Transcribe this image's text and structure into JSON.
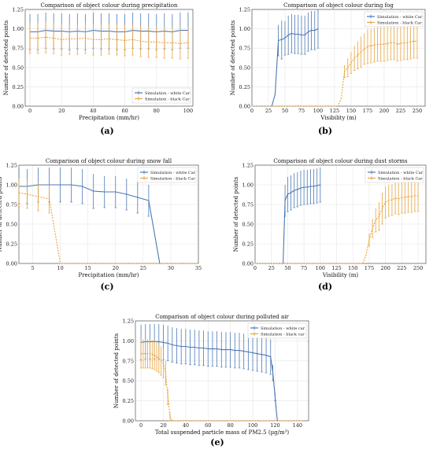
{
  "captions": [
    "(a)",
    "(b)",
    "(c)",
    "(d)",
    "(e)"
  ],
  "colors": {
    "white_car": "#4c78b5",
    "black_car": "#e8a33d",
    "axis": "#555555",
    "grid": "#e6e6e6"
  },
  "chart_data": [
    {
      "type": "line",
      "title": "Comparison of object colour during precipitation",
      "xlabel": "Precipitation (mm/hr)",
      "ylabel": "Number of detected points",
      "xlim": [
        -3,
        103
      ],
      "ylim": [
        0,
        1.25
      ],
      "xticks": [
        0,
        20,
        40,
        60,
        80,
        100
      ],
      "xtick_labels": [
        "0",
        "20",
        "40",
        "60",
        "80",
        "100"
      ],
      "yticks": [
        0,
        0.25,
        0.5,
        0.75,
        1.0,
        1.25
      ],
      "ytick_labels": [
        "0.00",
        "0.25",
        "0.50",
        "0.75",
        "1.00",
        "1.25"
      ],
      "legend_position": "bottom-right",
      "grid": true,
      "series": [
        {
          "name": "Simulation - white Car",
          "color": "#4c78b5",
          "x": [
            0,
            5,
            10,
            15,
            20,
            25,
            30,
            35,
            40,
            45,
            50,
            55,
            60,
            65,
            70,
            75,
            80,
            85,
            90,
            95,
            100
          ],
          "y": [
            0.96,
            0.96,
            0.98,
            0.97,
            0.97,
            0.96,
            0.97,
            0.96,
            0.98,
            0.97,
            0.97,
            0.96,
            0.96,
            0.98,
            0.97,
            0.97,
            0.96,
            0.97,
            0.96,
            0.98,
            0.98
          ],
          "err": [
            0.23,
            0.23,
            0.23,
            0.23,
            0.23,
            0.23,
            0.23,
            0.23,
            0.23,
            0.23,
            0.23,
            0.23,
            0.23,
            0.23,
            0.23,
            0.23,
            0.23,
            0.23,
            0.23,
            0.23,
            0.23
          ]
        },
        {
          "name": "Simulation - black Car",
          "color": "#e8a33d",
          "x": [
            0,
            5,
            10,
            15,
            20,
            25,
            30,
            35,
            40,
            45,
            50,
            55,
            60,
            65,
            70,
            75,
            80,
            85,
            90,
            95,
            100
          ],
          "y": [
            0.88,
            0.88,
            0.89,
            0.88,
            0.86,
            0.87,
            0.87,
            0.88,
            0.86,
            0.86,
            0.87,
            0.86,
            0.85,
            0.86,
            0.84,
            0.83,
            0.83,
            0.82,
            0.82,
            0.81,
            0.82
          ],
          "err": [
            0.2,
            0.2,
            0.2,
            0.2,
            0.2,
            0.2,
            0.2,
            0.2,
            0.2,
            0.2,
            0.2,
            0.2,
            0.2,
            0.2,
            0.2,
            0.2,
            0.2,
            0.2,
            0.2,
            0.2,
            0.2
          ]
        }
      ]
    },
    {
      "type": "line",
      "title": "Comparison of object colour during fog",
      "xlabel": "Visibility (m)",
      "ylabel": "Number of detected points",
      "xlim": [
        0,
        262
      ],
      "ylim": [
        0,
        1.25
      ],
      "xticks": [
        0,
        25,
        50,
        75,
        100,
        125,
        150,
        175,
        200,
        225,
        250
      ],
      "xtick_labels": [
        "0",
        "25",
        "50",
        "75",
        "100",
        "125",
        "150",
        "175",
        "200",
        "225",
        "250"
      ],
      "yticks": [
        0,
        0.25,
        0.5,
        0.75,
        1.0,
        1.25
      ],
      "ytick_labels": [
        "0.00",
        "0.25",
        "0.50",
        "0.75",
        "1.00",
        "1.25"
      ],
      "legend_position": "top-right",
      "grid": true,
      "series": [
        {
          "name": "Simulation - white Car",
          "color": "#4c78b5",
          "x": [
            0,
            30,
            35,
            40,
            45,
            50,
            55,
            60,
            65,
            70,
            75,
            80,
            85,
            90,
            95,
            100
          ],
          "y": [
            0,
            0,
            0.15,
            0.85,
            0.86,
            0.88,
            0.92,
            0.94,
            0.93,
            0.93,
            0.92,
            0.92,
            0.96,
            0.98,
            0.98,
            1.0
          ],
          "err": [
            0,
            0,
            0,
            0.2,
            0.25,
            0.22,
            0.25,
            0.25,
            0.25,
            0.25,
            0.25,
            0.25,
            0.25,
            0.25,
            0.25,
            0.25
          ]
        },
        {
          "name": "Simulation - black Car",
          "color": "#e8a33d",
          "x": [
            0,
            130,
            135,
            140,
            145,
            150,
            155,
            160,
            165,
            170,
            175,
            180,
            185,
            190,
            195,
            200,
            205,
            210,
            215,
            220,
            225,
            230,
            235,
            240,
            245,
            250
          ],
          "y": [
            0,
            0,
            0.1,
            0.45,
            0.5,
            0.56,
            0.62,
            0.66,
            0.7,
            0.74,
            0.77,
            0.78,
            0.79,
            0.8,
            0.8,
            0.8,
            0.81,
            0.82,
            0.82,
            0.8,
            0.81,
            0.82,
            0.82,
            0.83,
            0.84,
            0.84
          ],
          "err": [
            0,
            0,
            0,
            0.08,
            0.12,
            0.14,
            0.16,
            0.18,
            0.2,
            0.2,
            0.22,
            0.22,
            0.22,
            0.22,
            0.22,
            0.22,
            0.22,
            0.22,
            0.22,
            0.22,
            0.22,
            0.22,
            0.22,
            0.22,
            0.22,
            0.22
          ]
        }
      ]
    },
    {
      "type": "line",
      "title": "Comparison of object colour during snow fall",
      "xlabel": "Precipitation (mm/hr)",
      "ylabel": "Number of detected points",
      "xlim": [
        2.5,
        35
      ],
      "ylim": [
        0,
        1.25
      ],
      "xticks": [
        5,
        10,
        15,
        20,
        25,
        30,
        35
      ],
      "xtick_labels": [
        "5",
        "10",
        "15",
        "20",
        "25",
        "30",
        "35"
      ],
      "yticks": [
        0,
        0.25,
        0.5,
        0.75,
        1.0,
        1.25
      ],
      "ytick_labels": [
        "0.00",
        "0.25",
        "0.50",
        "0.75",
        "1.00",
        "1.25"
      ],
      "legend_position": "top-right",
      "grid": true,
      "series": [
        {
          "name": "Simulation - white Car",
          "color": "#4c78b5",
          "x": [
            2.5,
            4,
            6,
            8,
            10,
            12,
            14,
            16,
            18,
            20,
            22,
            24,
            26,
            28
          ],
          "y": [
            0.98,
            0.98,
            1.0,
            1.0,
            1.0,
            1.0,
            0.98,
            0.92,
            0.91,
            0.91,
            0.88,
            0.84,
            0.8,
            0.0
          ],
          "err": [
            0.22,
            0.22,
            0.22,
            0.22,
            0.22,
            0.22,
            0.22,
            0.22,
            0.2,
            0.2,
            0.2,
            0.2,
            0.2,
            0
          ]
        },
        {
          "name": "Simulation - black Car",
          "color": "#e8a33d",
          "x": [
            2.5,
            4,
            6,
            8,
            10,
            12,
            14,
            16,
            18,
            20,
            22,
            24,
            26,
            28,
            30,
            32,
            34,
            35
          ],
          "y": [
            0.9,
            0.88,
            0.85,
            0.82,
            0.0,
            0,
            0,
            0,
            0,
            0,
            0,
            0,
            0,
            0,
            0,
            0,
            0,
            0
          ],
          "err": [
            0.18,
            0.18,
            0.18,
            0.18,
            0,
            0,
            0,
            0,
            0,
            0,
            0,
            0,
            0,
            0,
            0,
            0,
            0,
            0
          ]
        }
      ]
    },
    {
      "type": "line",
      "title": "Comparison of object colour during dust storms",
      "xlabel": "Visibility (m)",
      "ylabel": "Number of detected points",
      "xlim": [
        0,
        262
      ],
      "ylim": [
        0,
        1.25
      ],
      "xticks": [
        0,
        25,
        50,
        75,
        100,
        125,
        150,
        175,
        200,
        225,
        250
      ],
      "xtick_labels": [
        "0",
        "25",
        "50",
        "75",
        "100",
        "125",
        "150",
        "175",
        "200",
        "225",
        "250"
      ],
      "yticks": [
        0,
        0.25,
        0.5,
        0.75,
        1.0,
        1.25
      ],
      "ytick_labels": [
        "0.00",
        "0.25",
        "0.50",
        "0.75",
        "1.00",
        "1.25"
      ],
      "legend_position": "top-right",
      "grid": true,
      "series": [
        {
          "name": "Simulation - white Car",
          "color": "#4c78b5",
          "x": [
            0,
            43,
            46,
            50,
            55,
            60,
            65,
            70,
            75,
            80,
            85,
            90,
            95,
            100
          ],
          "y": [
            0,
            0,
            0.8,
            0.88,
            0.9,
            0.93,
            0.94,
            0.96,
            0.97,
            0.97,
            0.98,
            0.98,
            0.99,
            1.0
          ],
          "err": [
            0,
            0,
            0.2,
            0.22,
            0.22,
            0.22,
            0.22,
            0.22,
            0.22,
            0.22,
            0.22,
            0.22,
            0.22,
            0.22
          ]
        },
        {
          "name": "Simulation - black Car",
          "color": "#e8a33d",
          "x": [
            0,
            165,
            170,
            175,
            180,
            185,
            190,
            195,
            200,
            205,
            210,
            215,
            220,
            225,
            230,
            235,
            240,
            245,
            250
          ],
          "y": [
            0,
            0,
            0.1,
            0.3,
            0.45,
            0.55,
            0.6,
            0.7,
            0.78,
            0.8,
            0.81,
            0.83,
            0.82,
            0.84,
            0.84,
            0.85,
            0.85,
            0.86,
            0.86
          ],
          "err": [
            0,
            0,
            0,
            0.08,
            0.12,
            0.15,
            0.18,
            0.2,
            0.2,
            0.2,
            0.2,
            0.2,
            0.2,
            0.2,
            0.2,
            0.2,
            0.2,
            0.2,
            0.2
          ]
        }
      ]
    },
    {
      "type": "line",
      "title": "Comparison of object colour during polluted air",
      "xlabel": "Total suspended particle mass of PM2.5 (µg/m³)",
      "ylabel": "Number of detected points",
      "xlim": [
        -5,
        150
      ],
      "ylim": [
        0,
        1.25
      ],
      "xticks": [
        0,
        20,
        40,
        60,
        80,
        100,
        120,
        140
      ],
      "xtick_labels": [
        "0",
        "20",
        "40",
        "60",
        "80",
        "100",
        "120",
        "140"
      ],
      "yticks": [
        0,
        0.25,
        0.5,
        0.75,
        1.0,
        1.25
      ],
      "ytick_labels": [
        "0.00",
        "0.25",
        "0.50",
        "0.75",
        "1.00",
        "1.25"
      ],
      "legend_position": "top-right",
      "grid": true,
      "series": [
        {
          "name": "Simulation - white car",
          "color": "#4c78b5",
          "x": [
            0,
            4,
            8,
            12,
            16,
            20,
            24,
            28,
            32,
            36,
            40,
            44,
            48,
            52,
            56,
            60,
            64,
            68,
            72,
            76,
            80,
            84,
            88,
            92,
            96,
            100,
            104,
            108,
            112,
            116,
            118,
            120,
            122
          ],
          "y": [
            0.98,
            0.99,
            0.99,
            0.99,
            0.99,
            0.98,
            0.97,
            0.95,
            0.94,
            0.93,
            0.93,
            0.92,
            0.92,
            0.91,
            0.91,
            0.9,
            0.9,
            0.9,
            0.89,
            0.89,
            0.89,
            0.88,
            0.88,
            0.87,
            0.86,
            0.85,
            0.84,
            0.83,
            0.82,
            0.8,
            0.6,
            0.3,
            0.0
          ],
          "err": [
            0.22,
            0.22,
            0.22,
            0.22,
            0.22,
            0.22,
            0.22,
            0.22,
            0.22,
            0.22,
            0.22,
            0.22,
            0.22,
            0.22,
            0.22,
            0.22,
            0.22,
            0.22,
            0.22,
            0.22,
            0.22,
            0.22,
            0.22,
            0.22,
            0.22,
            0.22,
            0.22,
            0.22,
            0.22,
            0.22,
            0.1,
            0.05,
            0
          ]
        },
        {
          "name": "Simulation - black car",
          "color": "#e8a33d",
          "x": [
            0,
            2,
            4,
            6,
            8,
            10,
            12,
            14,
            16,
            18,
            20,
            22,
            24,
            26,
            28,
            30,
            40,
            60,
            80,
            100,
            120,
            140,
            145
          ],
          "y": [
            0.84,
            0.84,
            0.84,
            0.84,
            0.84,
            0.83,
            0.82,
            0.8,
            0.78,
            0.75,
            0.72,
            0.6,
            0.3,
            0.05,
            0.0,
            0,
            0,
            0,
            0,
            0,
            0,
            0,
            0
          ],
          "err": [
            0.18,
            0.18,
            0.18,
            0.18,
            0.18,
            0.18,
            0.18,
            0.18,
            0.18,
            0.18,
            0.18,
            0.15,
            0.1,
            0.05,
            0,
            0,
            0,
            0,
            0,
            0,
            0,
            0,
            0
          ]
        }
      ]
    }
  ]
}
